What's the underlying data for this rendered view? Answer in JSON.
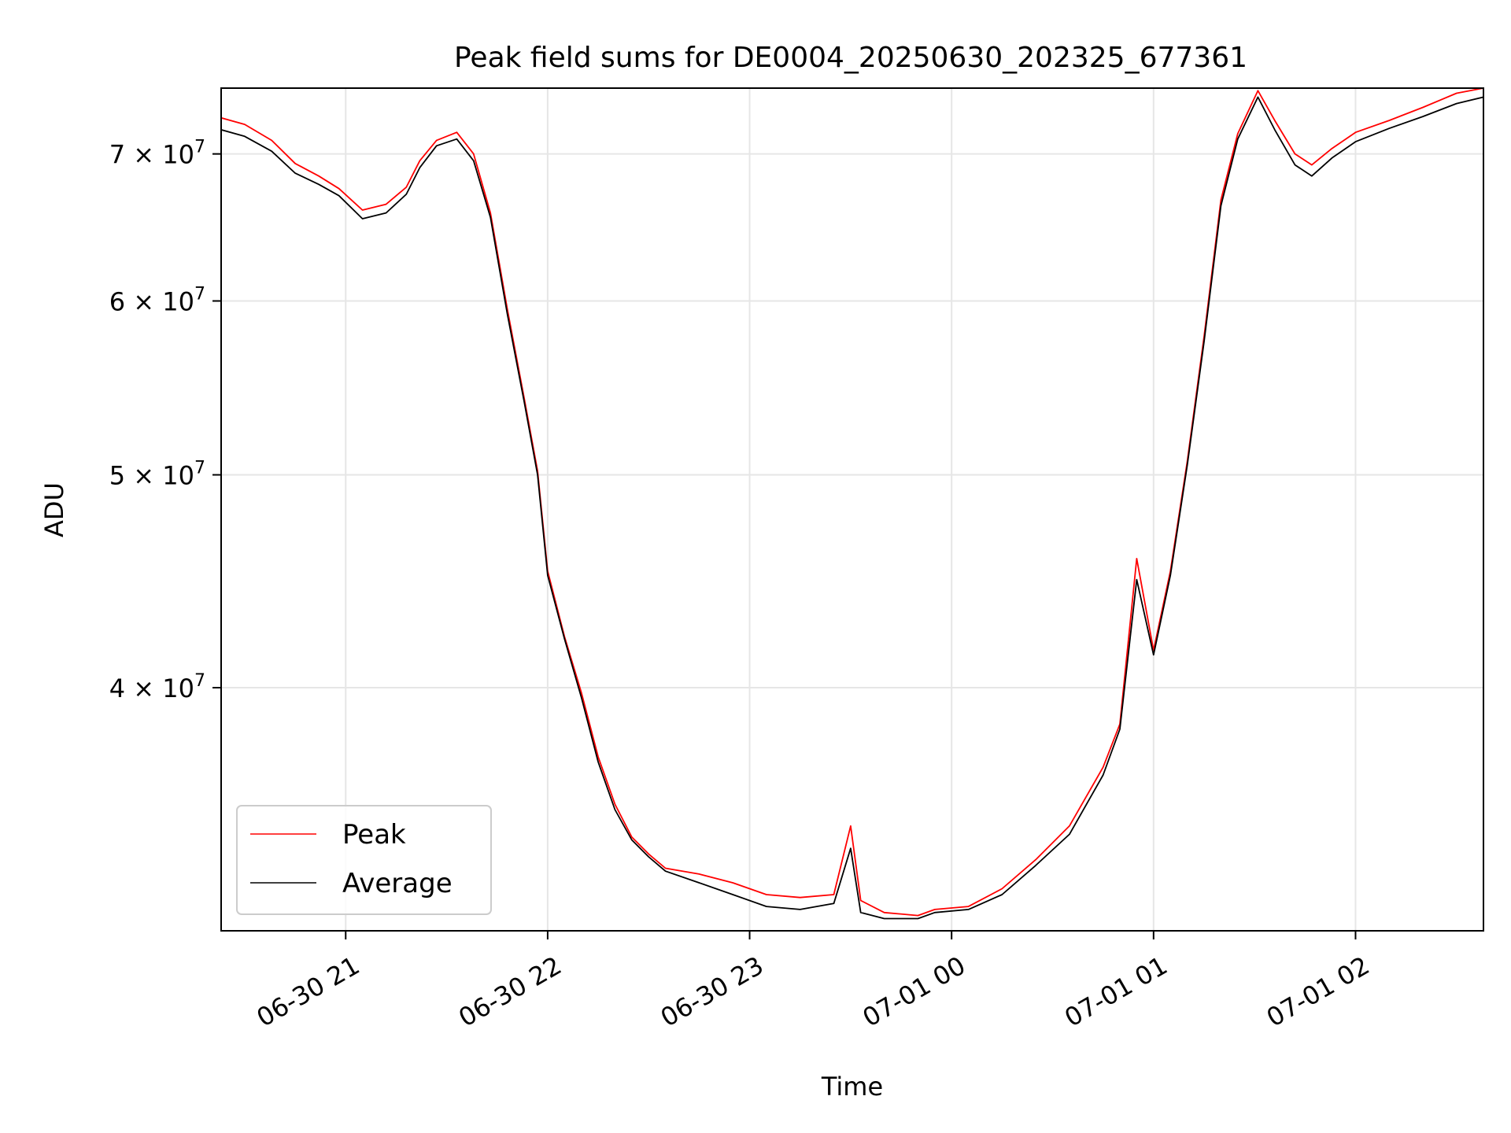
{
  "chart_data": {
    "type": "line",
    "title": "Peak field sums for DE0004_20250630_202325_677361",
    "xlabel": "Time",
    "ylabel": "ADU",
    "x_scale": "time",
    "y_scale": "log",
    "xlim": [
      "2025-06-30 20:23",
      "2025-07-01 02:38"
    ],
    "ylim": [
      31000000,
      75000000
    ],
    "x_ticks": [
      {
        "t": "2025-06-30 21:00",
        "label": "06-30 21"
      },
      {
        "t": "2025-06-30 22:00",
        "label": "06-30 22"
      },
      {
        "t": "2025-06-30 23:00",
        "label": "06-30 23"
      },
      {
        "t": "2025-07-01 00:00",
        "label": "07-01 00"
      },
      {
        "t": "2025-07-01 01:00",
        "label": "07-01 01"
      },
      {
        "t": "2025-07-01 02:00",
        "label": "07-01 02"
      }
    ],
    "y_ticks": [
      {
        "value": 40000000,
        "mantissa": "4",
        "exponent": "7"
      },
      {
        "value": 50000000,
        "mantissa": "5",
        "exponent": "7"
      },
      {
        "value": 60000000,
        "mantissa": "6",
        "exponent": "7"
      },
      {
        "value": 70000000,
        "mantissa": "7",
        "exponent": "7"
      }
    ],
    "tick_label_mid": "×",
    "tick_label_base": "10",
    "grid": true,
    "legend_position": "lower-left",
    "x": [
      "2025-06-30 20:23",
      "2025-06-30 20:30",
      "2025-06-30 20:38",
      "2025-06-30 20:45",
      "2025-06-30 20:52",
      "2025-06-30 20:58",
      "2025-06-30 21:05",
      "2025-06-30 21:12",
      "2025-06-30 21:18",
      "2025-06-30 21:22",
      "2025-06-30 21:27",
      "2025-06-30 21:33",
      "2025-06-30 21:38",
      "2025-06-30 21:43",
      "2025-06-30 21:48",
      "2025-06-30 21:53",
      "2025-06-30 21:57",
      "2025-06-30 22:00",
      "2025-06-30 22:05",
      "2025-06-30 22:10",
      "2025-06-30 22:15",
      "2025-06-30 22:20",
      "2025-06-30 22:25",
      "2025-06-30 22:30",
      "2025-06-30 22:35",
      "2025-06-30 22:45",
      "2025-06-30 22:55",
      "2025-06-30 23:05",
      "2025-06-30 23:15",
      "2025-06-30 23:25",
      "2025-06-30 23:30",
      "2025-06-30 23:33",
      "2025-06-30 23:40",
      "2025-06-30 23:50",
      "2025-06-30 23:55",
      "2025-07-01 00:05",
      "2025-07-01 00:15",
      "2025-07-01 00:25",
      "2025-07-01 00:35",
      "2025-07-01 00:45",
      "2025-07-01 00:50",
      "2025-07-01 00:55",
      "2025-07-01 01:00",
      "2025-07-01 01:05",
      "2025-07-01 01:10",
      "2025-07-01 01:15",
      "2025-07-01 01:20",
      "2025-07-01 01:25",
      "2025-07-01 01:31",
      "2025-07-01 01:36",
      "2025-07-01 01:42",
      "2025-07-01 01:47",
      "2025-07-01 01:53",
      "2025-07-01 02:00",
      "2025-07-01 02:10",
      "2025-07-01 02:20",
      "2025-07-01 02:30",
      "2025-07-01 02:38"
    ],
    "series": [
      {
        "name": "Peak",
        "color": "#ff0000",
        "y": [
          72700000,
          72200000,
          71000000,
          69300000,
          68400000,
          67500000,
          66000000,
          66400000,
          67600000,
          69500000,
          71000000,
          71600000,
          70000000,
          65800000,
          59500000,
          54200000,
          50200000,
          45200000,
          42200000,
          39800000,
          37200000,
          35400000,
          34200000,
          33600000,
          33100000,
          32900000,
          32600000,
          32200000,
          32100000,
          32200000,
          34600000,
          32000000,
          31600000,
          31500000,
          31700000,
          31800000,
          32400000,
          33400000,
          34600000,
          36800000,
          38500000,
          45800000,
          41600000,
          45200000,
          50700000,
          57800000,
          66700000,
          71500000,
          74800000,
          72500000,
          70000000,
          69200000,
          70400000,
          71600000,
          72500000,
          73500000,
          74600000,
          75000000
        ]
      },
      {
        "name": "Average",
        "color": "#000000",
        "y": [
          71800000,
          71300000,
          70200000,
          68600000,
          67800000,
          67000000,
          65400000,
          65800000,
          67100000,
          69000000,
          70600000,
          71100000,
          69500000,
          65500000,
          59200000,
          54000000,
          50000000,
          45000000,
          42100000,
          39600000,
          37000000,
          35200000,
          34100000,
          33500000,
          33000000,
          32600000,
          32200000,
          31800000,
          31700000,
          31900000,
          33800000,
          31600000,
          31400000,
          31400000,
          31600000,
          31700000,
          32200000,
          33200000,
          34300000,
          36500000,
          38300000,
          44800000,
          41400000,
          45000000,
          50500000,
          57500000,
          66300000,
          71100000,
          74300000,
          71800000,
          69200000,
          68400000,
          69700000,
          70900000,
          71900000,
          72800000,
          73800000,
          74300000
        ]
      }
    ]
  }
}
